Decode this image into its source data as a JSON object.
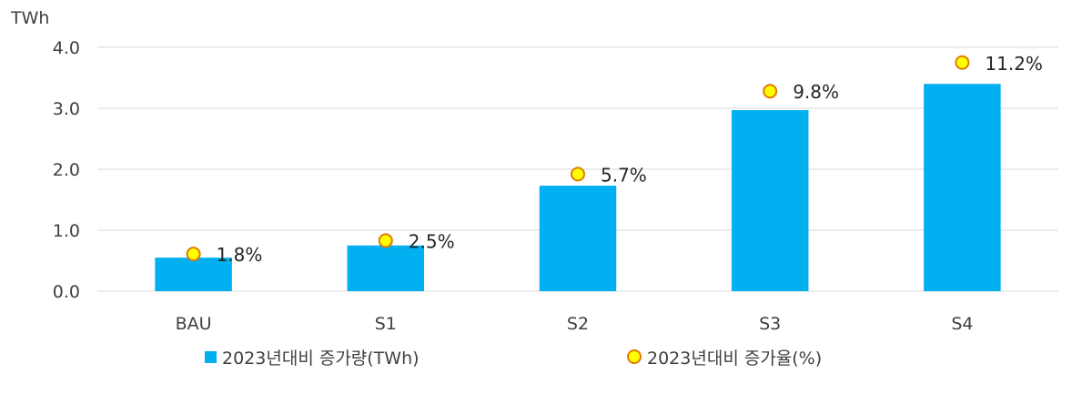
{
  "chart_data": {
    "type": "bar",
    "ylabel": "TWh",
    "ylim": [
      0,
      4.0
    ],
    "yticks": [
      "0.0",
      "1.0",
      "2.0",
      "3.0",
      "4.0"
    ],
    "categories": [
      "BAU",
      "S1",
      "S2",
      "S3",
      "S4"
    ],
    "series": [
      {
        "name": "2023년대비 증가량(TWh)",
        "type": "bar",
        "color": "#00B0F0",
        "values": [
          0.55,
          0.75,
          1.73,
          2.97,
          3.4
        ]
      },
      {
        "name": "2023년대비 증가율(%)",
        "type": "scatter",
        "color": "#FFFF00",
        "edge_color": "#E07B00",
        "values": [
          0.61,
          0.83,
          1.92,
          3.28,
          3.75
        ],
        "labels": [
          "1.8%",
          "2.5%",
          "5.7%",
          "9.8%",
          "11.2%"
        ]
      }
    ],
    "grid": true,
    "legend": "bottom"
  }
}
